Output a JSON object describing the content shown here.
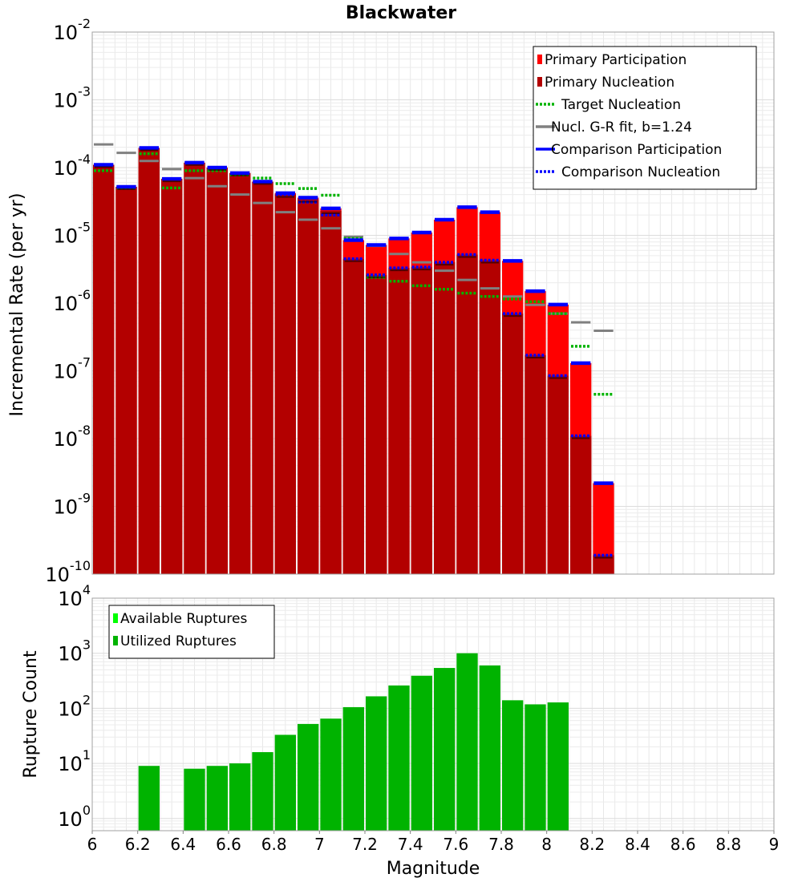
{
  "chart_data": [
    {
      "type": "bar",
      "title": "Blackwater",
      "ylabel": "Incremental Rate (per yr)",
      "xlabel": "",
      "xlim": [
        6,
        9
      ],
      "ylim": [
        1e-10,
        0.01
      ],
      "yscale": "log",
      "bin_width": 0.1,
      "grid": true,
      "legend_position": "top-right",
      "x": [
        6.05,
        6.15,
        6.25,
        6.35,
        6.45,
        6.55,
        6.65,
        6.75,
        6.85,
        6.95,
        7.05,
        7.15,
        7.25,
        7.35,
        7.45,
        7.55,
        7.65,
        7.75,
        7.85,
        7.95,
        8.05,
        8.15,
        8.25
      ],
      "series": [
        {
          "name": "Primary Participation",
          "style": "bar",
          "color": "#ff0000",
          "values": [
            0.00011,
            5.2e-05,
            0.000195,
            6.8e-05,
            0.000118,
            0.0001,
            8.3e-05,
            6.2e-05,
            4.2e-05,
            3.6e-05,
            2.5e-05,
            8.5e-06,
            7.2e-06,
            9e-06,
            1.1e-05,
            1.7e-05,
            2.6e-05,
            2.2e-05,
            4.2e-06,
            1.5e-06,
            9.5e-07,
            1.3e-07,
            2.2e-09
          ]
        },
        {
          "name": "Primary Nucleation",
          "style": "bar",
          "color": "#b30000",
          "values": [
            0.00011,
            5.2e-05,
            0.000195,
            6.8e-05,
            0.000118,
            0.0001,
            8.3e-05,
            6.2e-05,
            4e-05,
            3.4e-05,
            2.3e-05,
            4.5e-06,
            2.6e-06,
            3.3e-06,
            3.4e-06,
            4e-06,
            5.2e-06,
            4.3e-06,
            7e-07,
            1.7e-07,
            8.5e-08,
            1.1e-08,
            1.9e-10
          ]
        },
        {
          "name": "Target Nucleation",
          "style": "dotted",
          "color": "#00b300",
          "values": [
            9e-05,
            5e-05,
            0.00016,
            5e-05,
            9e-05,
            9e-05,
            7.8e-05,
            7e-05,
            5.8e-05,
            4.9e-05,
            3.9e-05,
            9e-06,
            2.4e-06,
            2.1e-06,
            1.8e-06,
            1.6e-06,
            1.4e-06,
            1.25e-06,
            1.15e-06,
            1.05e-06,
            7e-07,
            2.3e-07,
            4.5e-08
          ]
        },
        {
          "name": "Nucl. G-R fit, b=1.24",
          "style": "solid",
          "color": "#808080",
          "values": [
            0.00022,
            0.000165,
            0.000125,
            9.5e-05,
            7e-05,
            5.3e-05,
            4e-05,
            3e-05,
            2.2e-05,
            1.7e-05,
            1.27e-05,
            9.5e-06,
            7e-06,
            5.3e-06,
            4e-06,
            3e-06,
            2.2e-06,
            1.65e-06,
            1.25e-06,
            9.4e-07,
            7e-07,
            5.2e-07,
            3.9e-07
          ]
        },
        {
          "name": "Comparison Participation",
          "style": "solid",
          "color": "#0000ff",
          "values": [
            0.00011,
            5.2e-05,
            0.000195,
            6.8e-05,
            0.000118,
            0.0001,
            8.3e-05,
            6.2e-05,
            4.2e-05,
            3.6e-05,
            2.5e-05,
            8.5e-06,
            7.2e-06,
            9e-06,
            1.1e-05,
            1.7e-05,
            2.6e-05,
            2.2e-05,
            4.2e-06,
            1.5e-06,
            9.5e-07,
            1.3e-07,
            2.2e-09
          ]
        },
        {
          "name": "Comparison Nucleation",
          "style": "dotted",
          "color": "#0000ff",
          "values": [
            0.00011,
            5.2e-05,
            0.000195,
            6.8e-05,
            0.000118,
            0.0001,
            8.3e-05,
            6.2e-05,
            4e-05,
            3.1e-05,
            2e-05,
            4.5e-06,
            2.6e-06,
            3.3e-06,
            3.4e-06,
            4e-06,
            5.2e-06,
            4.3e-06,
            7e-07,
            1.7e-07,
            8.5e-08,
            1.1e-08,
            1.9e-10
          ]
        }
      ],
      "y_ticks": [
        {
          "base": "10",
          "exp": "-10",
          "value": 1e-10
        },
        {
          "base": "10",
          "exp": "-9",
          "value": 1e-09
        },
        {
          "base": "10",
          "exp": "-8",
          "value": 1e-08
        },
        {
          "base": "10",
          "exp": "-7",
          "value": 1e-07
        },
        {
          "base": "10",
          "exp": "-6",
          "value": 1e-06
        },
        {
          "base": "10",
          "exp": "-5",
          "value": 1e-05
        },
        {
          "base": "10",
          "exp": "-4",
          "value": 0.0001
        },
        {
          "base": "10",
          "exp": "-3",
          "value": 0.001
        },
        {
          "base": "10",
          "exp": "-2",
          "value": 0.01
        }
      ]
    },
    {
      "type": "bar",
      "title": "",
      "ylabel": "Rupture Count",
      "xlabel": "Magnitude",
      "xlim": [
        6,
        9
      ],
      "ylim": [
        0.6,
        10000
      ],
      "yscale": "log",
      "bin_width": 0.1,
      "grid": true,
      "legend_position": "top-left",
      "x": [
        6.25,
        6.45,
        6.55,
        6.65,
        6.75,
        6.85,
        6.95,
        7.05,
        7.15,
        7.25,
        7.35,
        7.45,
        7.55,
        7.65,
        7.75,
        7.85,
        7.95,
        8.05
      ],
      "series": [
        {
          "name": "Available Ruptures",
          "style": "bar",
          "color": "#00ff00",
          "values": [
            9,
            8,
            9,
            10,
            16,
            33,
            52,
            65,
            105,
            165,
            260,
            390,
            540,
            1000,
            600,
            140,
            118,
            128
          ]
        },
        {
          "name": "Utilized Ruptures",
          "style": "bar",
          "color": "#00b300",
          "values": [
            9,
            8,
            9,
            10,
            16,
            33,
            52,
            65,
            105,
            165,
            260,
            390,
            540,
            1000,
            600,
            140,
            118,
            128
          ]
        }
      ],
      "x_ticks": [
        "6",
        "6.2",
        "6.4",
        "6.6",
        "6.8",
        "7",
        "7.2",
        "7.4",
        "7.6",
        "7.8",
        "8",
        "8.2",
        "8.4",
        "8.6",
        "8.8",
        "9"
      ],
      "y_ticks": [
        {
          "base": "10",
          "exp": "0",
          "value": 1
        },
        {
          "base": "10",
          "exp": "1",
          "value": 10
        },
        {
          "base": "10",
          "exp": "2",
          "value": 100
        },
        {
          "base": "10",
          "exp": "3",
          "value": 1000
        },
        {
          "base": "10",
          "exp": "4",
          "value": 10000
        }
      ]
    }
  ]
}
